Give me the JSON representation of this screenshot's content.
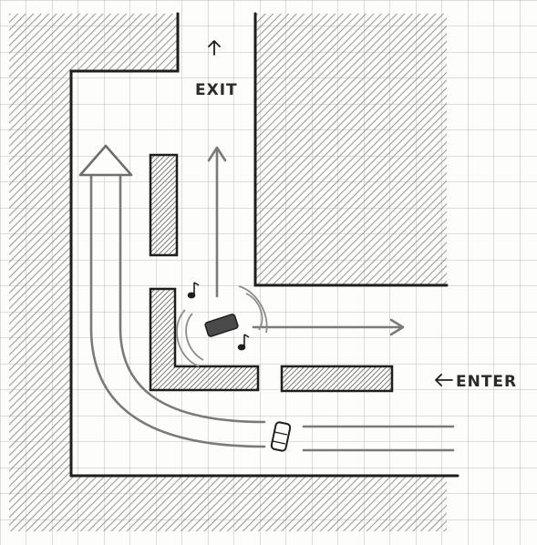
{
  "labels": {
    "exit": "EXIT",
    "enter": "ENTER"
  },
  "icons": {
    "exit_arrow": "arrow-up",
    "enter_arrow": "arrow-left",
    "music_notes": "music-note",
    "parked_car": "car",
    "moving_car": "car"
  },
  "colors": {
    "paper": "#fdfdfb",
    "grid": "#b9b9b9",
    "hatch": "#8f8f8f",
    "ink": "#1e1e1e",
    "path_gray": "#7a7a7a",
    "island_fill": "#9a9a9a"
  }
}
